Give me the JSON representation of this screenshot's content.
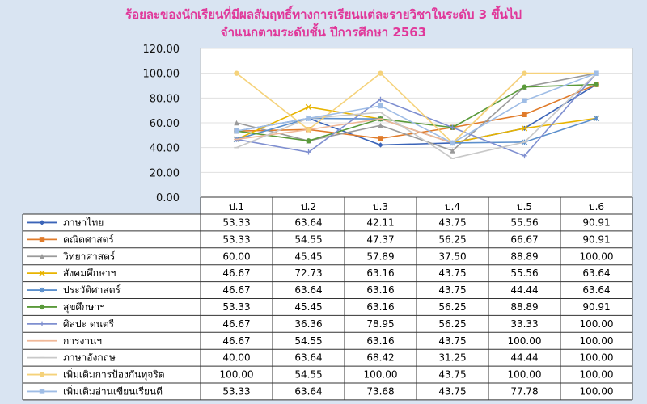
{
  "title_line1": "ร้อยละของนักเรียนที่มีผลสัมฤทธิ์ทางการเรียนแต่ละรายวิชาในระดับ 3 ขึ้นไป",
  "title_line2": "จำแนกตามระดับชั้น  ปีการศึกษา 2563",
  "chart_data": {
    "type": "line",
    "title": "ร้อยละของนักเรียนที่มีผลสัมฤทธิ์ทางการเรียนแต่ละรายวิชาในระดับ 3 ขึ้นไป จำแนกตามระดับชั้น  ปีการศึกษา 2563",
    "categories": [
      "ป.1",
      "ป.2",
      "ป.3",
      "ป.4",
      "ป.5",
      "ป.6"
    ],
    "ylim": [
      0,
      120
    ],
    "yticks": [
      "0.00",
      "20.00",
      "40.00",
      "60.00",
      "80.00",
      "100.00",
      "120.00"
    ],
    "grid": true,
    "legend": "data-table",
    "series": [
      {
        "name": "ภาษาไทย",
        "color": "#3b64b8",
        "marker": "diamond",
        "values": [
          53.33,
          63.64,
          42.11,
          43.75,
          55.56,
          90.91
        ]
      },
      {
        "name": "คณิตศาสตร์",
        "color": "#e07b2a",
        "marker": "square",
        "values": [
          53.33,
          54.55,
          47.37,
          56.25,
          66.67,
          90.91
        ]
      },
      {
        "name": "วิทยาศาสตร์",
        "color": "#9a9a9a",
        "marker": "triangle",
        "values": [
          60.0,
          45.45,
          57.89,
          37.5,
          88.89,
          100.0
        ]
      },
      {
        "name": "สังคมศึกษาฯ",
        "color": "#e8b400",
        "marker": "x",
        "values": [
          46.67,
          72.73,
          63.16,
          43.75,
          55.56,
          63.64
        ]
      },
      {
        "name": "ประวัติศาสตร์",
        "color": "#5b8fcc",
        "marker": "star",
        "values": [
          46.67,
          63.64,
          63.16,
          43.75,
          44.44,
          63.64
        ]
      },
      {
        "name": "สุขศึกษาฯ",
        "color": "#5a9a3a",
        "marker": "circle",
        "values": [
          53.33,
          45.45,
          63.16,
          56.25,
          88.89,
          90.91
        ]
      },
      {
        "name": "ศิลปะ ดนตรี",
        "color": "#7f8fd0",
        "marker": "plus",
        "values": [
          46.67,
          36.36,
          78.95,
          56.25,
          33.33,
          100.0
        ]
      },
      {
        "name": "การงานฯ",
        "color": "#f0b898",
        "marker": "dash",
        "values": [
          46.67,
          54.55,
          63.16,
          43.75,
          100.0,
          100.0
        ]
      },
      {
        "name": "ภาษาอังกฤษ",
        "color": "#c8c8c8",
        "marker": "dash",
        "values": [
          40.0,
          63.64,
          68.42,
          31.25,
          44.44,
          100.0
        ]
      },
      {
        "name": "เพิ่มเติมการป้องกันทุจริต",
        "color": "#f5d27a",
        "marker": "circle",
        "values": [
          100.0,
          54.55,
          100.0,
          43.75,
          100.0,
          100.0
        ]
      },
      {
        "name": "เพิ่มเติมอ่านเขียนเรียนดี",
        "color": "#9fbde6",
        "marker": "square",
        "values": [
          53.33,
          63.64,
          73.68,
          43.75,
          77.78,
          100.0
        ]
      }
    ]
  }
}
